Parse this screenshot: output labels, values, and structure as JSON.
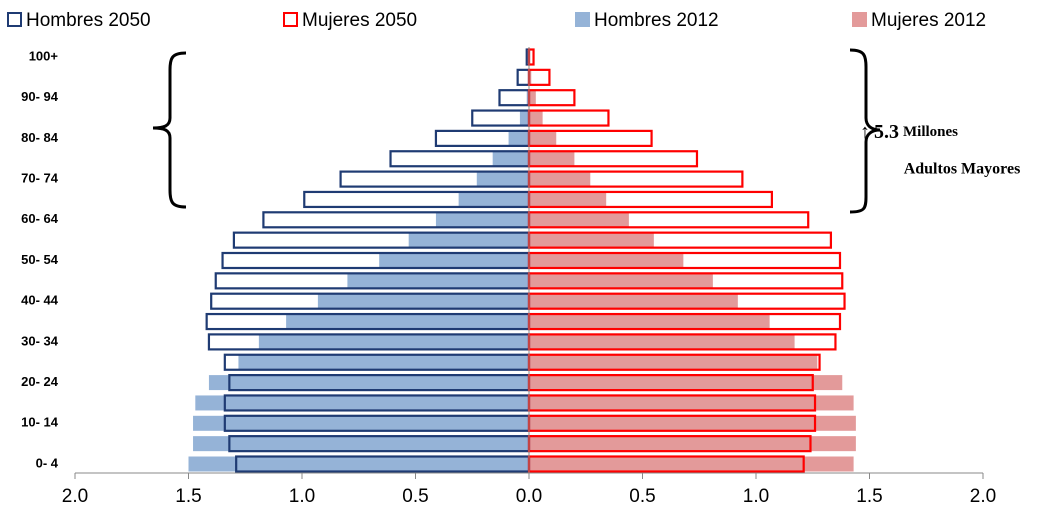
{
  "chart_data": {
    "type": "population-pyramid",
    "categories": [
      "0- 4",
      null,
      "10- 14",
      null,
      "20- 24",
      null,
      "30- 34",
      null,
      "40- 44",
      null,
      "50- 54",
      null,
      "60- 64",
      null,
      "70- 74",
      null,
      "80- 84",
      null,
      "90- 94",
      null,
      "100+"
    ],
    "series": [
      {
        "name": "Hombres 2050",
        "color": "#1f3b73",
        "style": "outline",
        "side": "left",
        "values": [
          -1.29,
          -1.32,
          -1.34,
          -1.34,
          -1.32,
          -1.34,
          -1.41,
          -1.42,
          -1.4,
          -1.38,
          -1.35,
          -1.3,
          -1.17,
          -0.99,
          -0.83,
          -0.61,
          -0.41,
          -0.25,
          -0.13,
          -0.05,
          -0.01
        ]
      },
      {
        "name": "Mujeres 2050",
        "color": "#ff0000",
        "style": "outline",
        "side": "right",
        "values": [
          1.21,
          1.24,
          1.26,
          1.26,
          1.25,
          1.28,
          1.35,
          1.37,
          1.39,
          1.38,
          1.37,
          1.33,
          1.23,
          1.07,
          0.94,
          0.74,
          0.54,
          0.35,
          0.2,
          0.09,
          0.02
        ]
      },
      {
        "name": "Hombres 2012",
        "color": "#95b3d7",
        "style": "fill",
        "side": "left",
        "values": [
          -1.5,
          -1.48,
          -1.48,
          -1.47,
          -1.41,
          -1.28,
          -1.19,
          -1.07,
          -0.93,
          -0.8,
          -0.66,
          -0.53,
          -0.41,
          -0.31,
          -0.23,
          -0.16,
          -0.09,
          -0.04,
          -0.01,
          -0.005,
          0
        ]
      },
      {
        "name": "Mujeres 2012",
        "color": "#e39a9a",
        "style": "fill",
        "side": "right",
        "values": [
          1.43,
          1.44,
          1.44,
          1.43,
          1.38,
          1.27,
          1.17,
          1.06,
          0.92,
          0.81,
          0.68,
          0.55,
          0.44,
          0.34,
          0.27,
          0.2,
          0.12,
          0.06,
          0.03,
          0.01,
          0
        ]
      }
    ],
    "xlim": [
      -2,
      2
    ],
    "xticks": [
      {
        "value": -2,
        "label": "2.0"
      },
      {
        "value": -1.5,
        "label": "1.5"
      },
      {
        "value": -1,
        "label": "1.0"
      },
      {
        "value": -0.5,
        "label": "0.5"
      },
      {
        "value": 0,
        "label": "0.0"
      },
      {
        "value": 0.5,
        "label": "0.5"
      },
      {
        "value": 1,
        "label": "1.0"
      },
      {
        "value": 1.5,
        "label": "1.5"
      },
      {
        "value": 2,
        "label": "2.0"
      }
    ],
    "annotation": {
      "arrow": "↑",
      "number": "5.3",
      "unit": "Millones",
      "line2": "Adultos Mayores"
    }
  }
}
